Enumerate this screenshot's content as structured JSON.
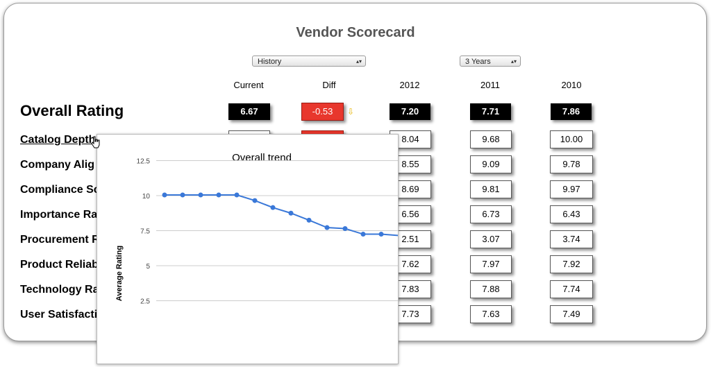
{
  "page": {
    "title": "Vendor Scorecard"
  },
  "controls": {
    "view_select": "History",
    "period_select": "3 Years"
  },
  "columns": [
    "Current",
    "Diff",
    "2012",
    "2011",
    "2010"
  ],
  "overall": {
    "label": "Overall Rating",
    "current": "6.67",
    "diff": "-0.53",
    "y2012": "7.20",
    "y2011": "7.71",
    "y2010": "7.86"
  },
  "rows": [
    {
      "label": "Catalog Depth",
      "y2012": "8.04",
      "y2011": "9.68",
      "y2010": "10.00"
    },
    {
      "label": "Company Alig",
      "y2012": "8.55",
      "y2011": "9.09",
      "y2010": "9.78"
    },
    {
      "label": "Compliance Sc",
      "y2012": "8.69",
      "y2011": "9.81",
      "y2010": "9.97"
    },
    {
      "label": "Importance Ra",
      "y2012": "6.56",
      "y2011": "6.73",
      "y2010": "6.43"
    },
    {
      "label": "Procurement R",
      "y2012": "2.51",
      "y2011": "3.07",
      "y2010": "3.74"
    },
    {
      "label": "Product Reliab",
      "y2012": "7.62",
      "y2011": "7.97",
      "y2010": "7.92"
    },
    {
      "label": "Technology Ra",
      "y2012": "7.83",
      "y2011": "7.88",
      "y2010": "7.74"
    },
    {
      "label": "User Satisfacti",
      "y2012": "7.73",
      "y2011": "7.63",
      "y2010": "7.49"
    }
  ],
  "colors": {
    "title": "#555555",
    "negative": "#e8372d",
    "dark_cell": "#000000",
    "line": "#3a78d8",
    "down_arrow": "#e6b400"
  },
  "icons": {
    "diff_trend": "down-arrow-icon",
    "cursor": "hand-pointer-icon"
  },
  "chart_data": {
    "type": "line",
    "title": "Overall trend",
    "xlabel": "",
    "ylabel": "Average Rating",
    "y_ticks": [
      "12.5",
      "10",
      "7.5",
      "5",
      "2.5"
    ],
    "y_tick_values": [
      12.5,
      10,
      7.5,
      5,
      2.5
    ],
    "ylim": [
      0,
      12.5
    ],
    "grid": true,
    "series": [
      {
        "values": [
          10.05,
          10.05,
          10.05,
          10.05,
          10.05,
          9.65,
          9.15,
          8.75,
          8.25,
          7.72,
          7.65,
          7.25,
          7.25,
          7.15
        ]
      }
    ]
  }
}
